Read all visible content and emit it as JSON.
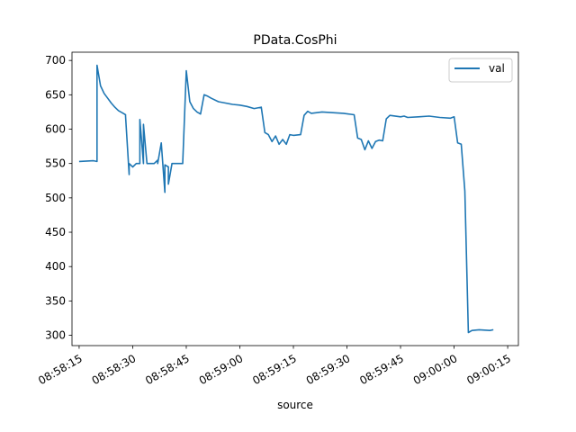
{
  "chart_data": {
    "type": "line",
    "title": "PData.CosPhi",
    "xlabel": "source",
    "ylabel": "",
    "legend": {
      "entries": [
        "val"
      ],
      "placement": "top-right"
    },
    "grid": false,
    "x_axis": {
      "kind": "time",
      "range": [
        "08:58:13",
        "09:00:18"
      ]
    },
    "ylim": [
      285,
      712
    ],
    "xticks": [
      "08:58:15",
      "08:58:30",
      "08:58:45",
      "08:59:00",
      "08:59:15",
      "08:59:30",
      "08:59:45",
      "09:00:00",
      "09:00:15"
    ],
    "yticks": [
      300,
      350,
      400,
      450,
      500,
      550,
      600,
      650,
      700
    ],
    "series": [
      {
        "name": "val",
        "color": "#1f77b4",
        "x": [
          "08:58:15",
          "08:58:19",
          "08:58:20",
          "08:58:20",
          "08:58:21",
          "08:58:22",
          "08:58:23",
          "08:58:24",
          "08:58:25",
          "08:58:26",
          "08:58:27",
          "08:58:28",
          "08:58:28",
          "08:58:29",
          "08:58:29",
          "08:58:30",
          "08:58:31",
          "08:58:32",
          "08:58:32",
          "08:58:33",
          "08:58:33",
          "08:58:34",
          "08:58:35",
          "08:58:36",
          "08:58:37",
          "08:58:37",
          "08:58:38",
          "08:58:39",
          "08:58:39",
          "08:58:40",
          "08:58:40",
          "08:58:41",
          "08:58:42",
          "08:58:44",
          "08:58:45",
          "08:58:46",
          "08:58:47",
          "08:58:48",
          "08:58:49",
          "08:58:50",
          "08:58:51",
          "08:58:52",
          "08:58:54",
          "08:58:56",
          "08:58:58",
          "08:59:00",
          "08:59:02",
          "08:59:04",
          "08:59:06",
          "08:59:07",
          "08:59:08",
          "08:59:09",
          "08:59:10",
          "08:59:11",
          "08:59:12",
          "08:59:13",
          "08:59:14",
          "08:59:15",
          "08:59:17",
          "08:59:18",
          "08:59:19",
          "08:59:20",
          "08:59:23",
          "08:59:26",
          "08:59:29",
          "08:59:32",
          "08:59:33",
          "08:59:34",
          "08:59:35",
          "08:59:36",
          "08:59:37",
          "08:59:38",
          "08:59:39",
          "08:59:40",
          "08:59:41",
          "08:59:42",
          "08:59:45",
          "08:59:46",
          "08:59:47",
          "08:59:50",
          "08:59:53",
          "08:59:56",
          "08:59:59",
          "09:00:00",
          "09:00:01",
          "09:00:02",
          "09:00:03",
          "09:00:04",
          "09:00:05",
          "09:00:07",
          "09:00:10",
          "09:00:11"
        ],
        "values": [
          553,
          554,
          553,
          693,
          663,
          652,
          645,
          638,
          632,
          627,
          624,
          621,
          619,
          534,
          550,
          545,
          550,
          550,
          614,
          550,
          607,
          550,
          550,
          550,
          555,
          550,
          580,
          508,
          548,
          545,
          520,
          550,
          550,
          550,
          685,
          640,
          630,
          625,
          622,
          650,
          648,
          645,
          640,
          638,
          636,
          635,
          633,
          630,
          632,
          595,
          592,
          582,
          590,
          578,
          585,
          578,
          592,
          591,
          592,
          620,
          626,
          623,
          625,
          624,
          623,
          621,
          587,
          585,
          570,
          583,
          572,
          582,
          584,
          583,
          615,
          620,
          618,
          619,
          617,
          618,
          619,
          617,
          616,
          618,
          580,
          578,
          510,
          304,
          307,
          308,
          307,
          308
        ]
      }
    ]
  }
}
